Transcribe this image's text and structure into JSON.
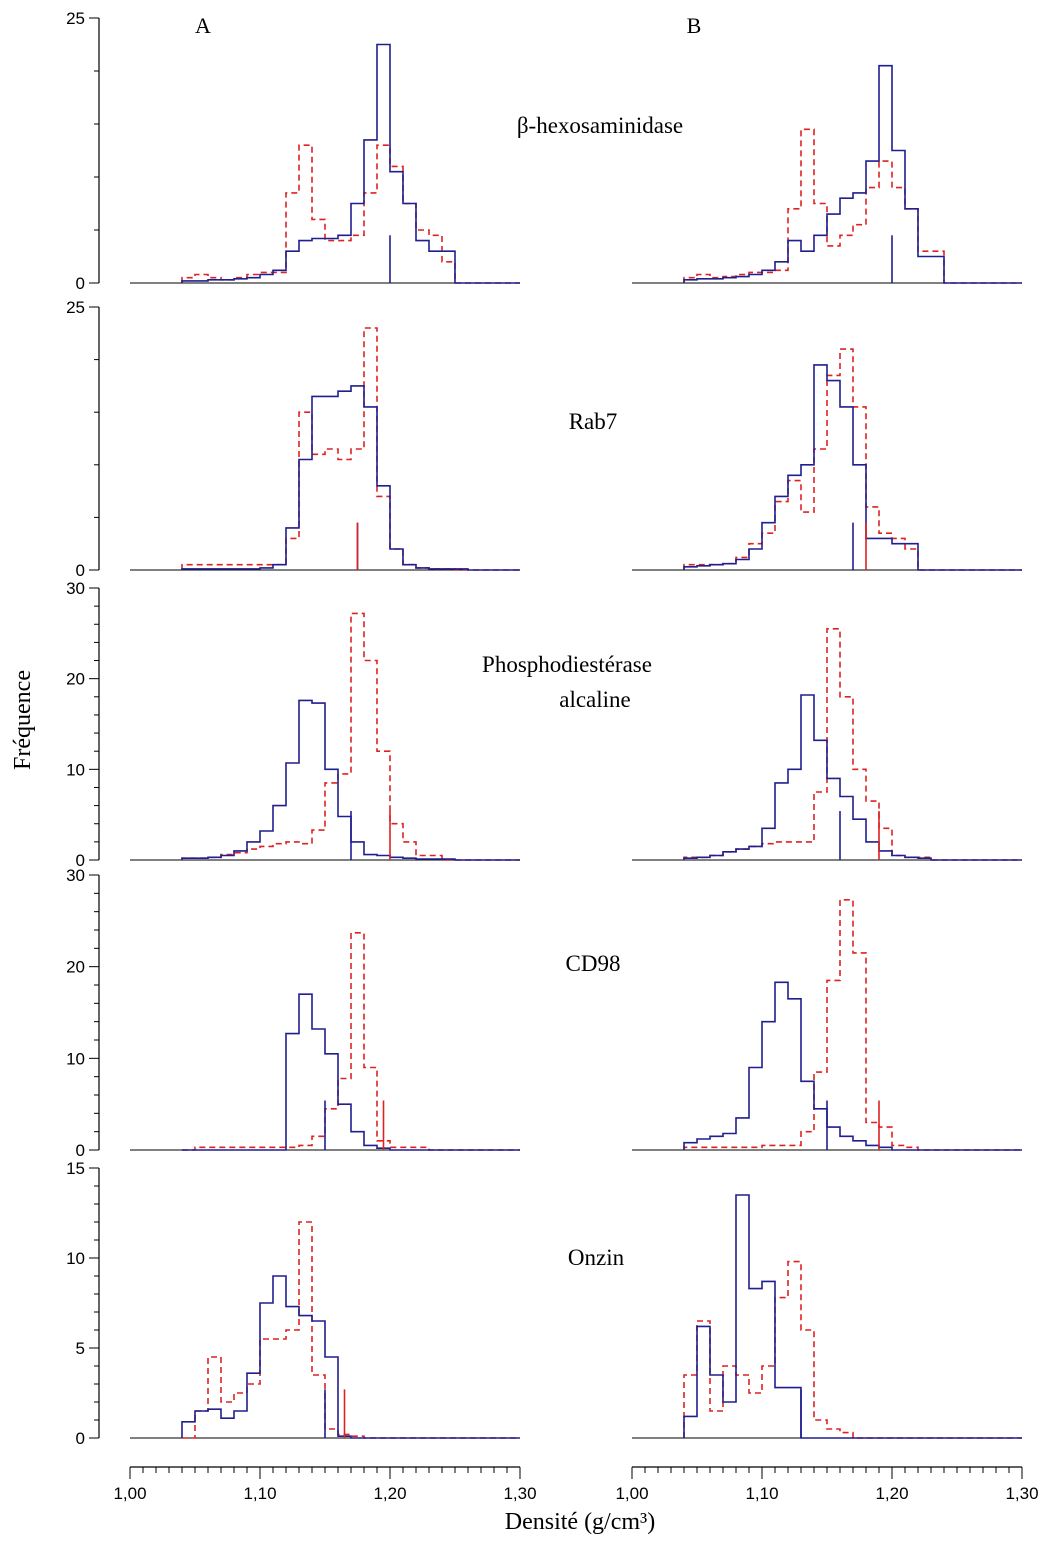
{
  "column_labels": [
    "A",
    "B"
  ],
  "y_axis_label": "Fréquence",
  "x_axis_label": "Densité (g/cm³)",
  "x_ticks": [
    "1,00",
    "1,10",
    "1,20",
    "1,30"
  ],
  "colors": {
    "blue": "#1f1f8f",
    "red": "#dd2222",
    "axis": "#000000"
  },
  "chart_data": {
    "type": "histogram-step",
    "xlim": [
      1.0,
      1.3
    ],
    "bin_edges": [
      1.04,
      1.05,
      1.06,
      1.07,
      1.08,
      1.09,
      1.1,
      1.11,
      1.12,
      1.13,
      1.14,
      1.15,
      1.16,
      1.17,
      1.18,
      1.19,
      1.2,
      1.21,
      1.22,
      1.23,
      1.24,
      1.25,
      1.26
    ],
    "x_end": 1.3,
    "panels": [
      {
        "label": "β-hexosaminidase",
        "ylim": [
          0,
          25
        ],
        "yticks": [
          0,
          25
        ],
        "A": {
          "blue": [
            0.2,
            0.2,
            0.3,
            0.3,
            0.4,
            0.5,
            0.8,
            1.2,
            3.0,
            4.0,
            4.2,
            4.2,
            4.5,
            7.5,
            13.5,
            22.5,
            10.5,
            7.5,
            4.0,
            3.0,
            3.0,
            0
          ],
          "red": [
            0.5,
            0.8,
            0.5,
            0.3,
            0.5,
            0.8,
            1.0,
            1.0,
            8.5,
            13.0,
            6.0,
            4.0,
            4.0,
            4.5,
            8.5,
            13.0,
            11.0,
            7.5,
            5.0,
            4.5,
            2.0,
            0
          ],
          "marks": {
            "blue": 1.2,
            "red": null
          }
        },
        "B": {
          "blue": [
            0.3,
            0.4,
            0.4,
            0.5,
            0.6,
            0.8,
            1.2,
            2.0,
            4.0,
            3.0,
            4.5,
            6.5,
            8.0,
            8.5,
            11.5,
            20.5,
            12.5,
            7.0,
            2.5,
            2.5,
            0,
            0
          ],
          "red": [
            0.5,
            0.8,
            0.5,
            0.6,
            0.8,
            1.0,
            1.0,
            1.2,
            7.0,
            14.5,
            7.5,
            3.5,
            4.5,
            5.5,
            9.0,
            11.5,
            9.0,
            7.0,
            3.0,
            3.0,
            0,
            0
          ],
          "marks": {
            "blue": 1.2,
            "red": null
          }
        }
      },
      {
        "label": "Rab7",
        "ylim": [
          0,
          25
        ],
        "yticks": [
          0,
          25
        ],
        "A": {
          "blue": [
            0.1,
            0.1,
            0.1,
            0.1,
            0.1,
            0.1,
            0.2,
            0.5,
            4.0,
            10.5,
            16.5,
            16.5,
            17.0,
            17.5,
            15.5,
            8.0,
            2.0,
            0.5,
            0.2,
            0.1,
            0.1,
            0.1
          ],
          "red": [
            0.5,
            0.5,
            0.5,
            0.5,
            0.5,
            0.5,
            0.5,
            0.5,
            3.0,
            15.0,
            11.0,
            11.5,
            10.5,
            11.5,
            23.0,
            7.0,
            2.0,
            0.5,
            0.2,
            0.1,
            0.1,
            0
          ],
          "marks": {
            "blue": 1.175,
            "red": 1.175
          }
        },
        "B": {
          "blue": [
            0.3,
            0.4,
            0.5,
            0.6,
            1.0,
            2.0,
            4.5,
            7.0,
            9.0,
            10.0,
            19.5,
            18.0,
            15.5,
            10.0,
            3.0,
            3.0,
            2.5,
            2.5,
            0,
            0,
            0,
            0
          ],
          "red": [
            0.5,
            0.5,
            0.5,
            0.6,
            1.2,
            2.5,
            3.5,
            6.5,
            8.5,
            5.5,
            11.5,
            18.5,
            21.0,
            15.5,
            6.0,
            3.5,
            3.0,
            2.0,
            0,
            0,
            0,
            0
          ],
          "marks": {
            "blue": 1.17,
            "red": 1.18
          }
        }
      },
      {
        "label": "Phosphodiestérase alcaline",
        "ylim": [
          0,
          30
        ],
        "yticks": [
          0,
          10,
          20,
          30
        ],
        "A": {
          "blue": [
            0.2,
            0.2,
            0.3,
            0.5,
            1.0,
            2.0,
            3.2,
            6.0,
            10.7,
            17.6,
            17.3,
            10.0,
            4.8,
            2.0,
            0.6,
            0.5,
            0.3,
            0.2,
            0.1,
            0.1,
            0.1,
            0
          ],
          "red": [
            0.2,
            0.2,
            0.3,
            0.6,
            0.8,
            1.2,
            1.5,
            1.8,
            2.0,
            1.8,
            3.3,
            8.5,
            9.5,
            27.2,
            22.0,
            12.0,
            4.0,
            2.0,
            0.5,
            0.5,
            0,
            0
          ],
          "marks": {
            "blue": 1.17,
            "red": 1.2
          }
        },
        "B": {
          "blue": [
            0.2,
            0.3,
            0.5,
            0.9,
            1.2,
            1.5,
            3.5,
            8.5,
            10.0,
            18.2,
            13.2,
            9.0,
            7.0,
            4.5,
            2.0,
            1.0,
            0.5,
            0.3,
            0.2,
            0,
            0,
            0
          ],
          "red": [
            0.3,
            0.3,
            0.5,
            0.9,
            1.2,
            1.5,
            1.8,
            2.0,
            2.0,
            2.0,
            7.5,
            25.5,
            18.0,
            10.0,
            6.5,
            3.5,
            0.5,
            0.3,
            0.3,
            0,
            0,
            0
          ],
          "marks": {
            "blue": 1.16,
            "red": 1.19
          }
        }
      },
      {
        "label": "CD98",
        "ylim": [
          0,
          30
        ],
        "yticks": [
          0,
          10,
          20,
          30
        ],
        "A": {
          "blue": [
            0,
            0,
            0,
            0,
            0,
            0,
            0,
            0,
            12.7,
            17.0,
            13.2,
            10.5,
            5.0,
            2.0,
            0.5,
            0.2,
            0,
            0,
            0,
            0,
            0,
            0
          ],
          "red": [
            0,
            0.3,
            0.3,
            0.3,
            0.3,
            0.3,
            0.3,
            0.3,
            0.3,
            0.5,
            1.5,
            4.5,
            7.8,
            23.7,
            9.0,
            1.0,
            0.3,
            0.3,
            0.3,
            0,
            0,
            0
          ],
          "marks": {
            "blue": 1.15,
            "red": 1.195
          }
        },
        "B": {
          "blue": [
            0.8,
            1.2,
            1.5,
            1.8,
            3.5,
            9.0,
            14.0,
            18.3,
            16.5,
            7.5,
            4.5,
            2.5,
            1.5,
            1.0,
            0.5,
            0.3,
            0,
            0,
            0,
            0,
            0,
            0
          ],
          "red": [
            0.3,
            0.3,
            0.3,
            0.3,
            0.3,
            0.3,
            0.5,
            0.5,
            0.5,
            2.0,
            8.5,
            18.5,
            27.3,
            21.5,
            3.0,
            2.5,
            0.5,
            0.3,
            0,
            0,
            0,
            0
          ],
          "marks": {
            "blue": 1.15,
            "red": 1.19
          }
        }
      },
      {
        "label": "Onzin",
        "ylim": [
          0,
          15
        ],
        "yticks": [
          0,
          5,
          10,
          15
        ],
        "A": {
          "blue": [
            0.9,
            1.5,
            1.6,
            1.1,
            1.5,
            3.6,
            7.5,
            9.0,
            7.3,
            6.8,
            6.5,
            4.5,
            0.1,
            0,
            0,
            0,
            0,
            0,
            0,
            0,
            0,
            0
          ],
          "red": [
            0,
            1.5,
            4.5,
            2.0,
            2.5,
            3.0,
            5.5,
            5.5,
            6.0,
            12.0,
            3.5,
            0.5,
            0.2,
            0.1,
            0,
            0,
            0,
            0,
            0,
            0,
            0,
            0
          ],
          "marks": {
            "blue": 1.15,
            "red": 1.165
          }
        },
        "B": {
          "blue": [
            1.2,
            6.2,
            3.5,
            2.0,
            13.5,
            8.3,
            8.7,
            2.8,
            2.8,
            0,
            0,
            0,
            0,
            0,
            0,
            0,
            0,
            0,
            0,
            0,
            0,
            0
          ],
          "red": [
            3.5,
            6.5,
            1.5,
            4.0,
            3.5,
            2.5,
            4.0,
            7.8,
            9.8,
            6.0,
            1.0,
            0.5,
            0.3,
            0,
            0,
            0,
            0,
            0,
            0,
            0,
            0,
            0
          ],
          "marks": {
            "blue": 1.13,
            "red": null
          }
        }
      }
    ]
  }
}
